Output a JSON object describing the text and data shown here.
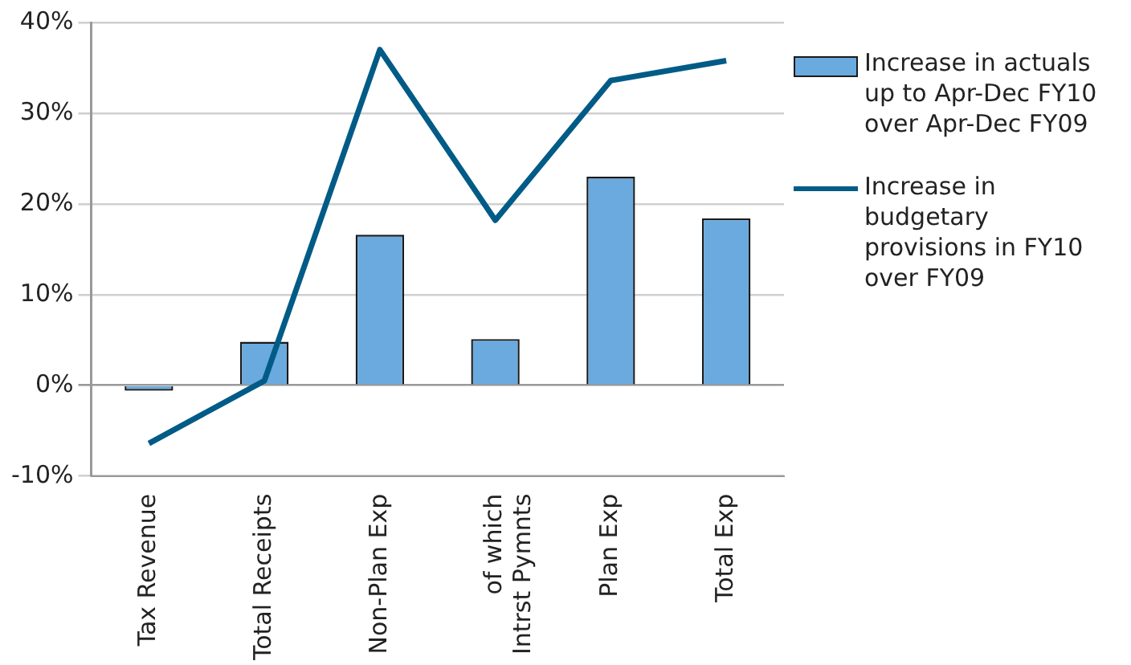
{
  "chart_data": {
    "type": "bar",
    "categories": [
      "Tax Revenue",
      "Total Receipts",
      "Non-Plan Exp",
      "of which Intrst Pymnts",
      "Plan Exp",
      "Total Exp"
    ],
    "series": [
      {
        "name": "Increase in actuals up to Apr-Dec FY10 over Apr-Dec FY09",
        "color": "#6aaade",
        "values": [
          -0.6,
          4.8,
          16.6,
          5.1,
          23.0,
          18.4
        ]
      },
      {
        "name": "Increase in budgetary provisions  in FY10 over FY09",
        "type": "line",
        "color": "#005b87",
        "values": [
          -6.4,
          0.5,
          37.0,
          18.2,
          33.6,
          35.8
        ]
      }
    ],
    "ylim": [
      -10,
      40
    ],
    "yticks": [
      {
        "value": -10,
        "label": "-10%"
      },
      {
        "value": 0,
        "label": "0%"
      },
      {
        "value": 10,
        "label": "10%"
      },
      {
        "value": 20,
        "label": "20%"
      },
      {
        "value": 30,
        "label": "30%"
      },
      {
        "value": 40,
        "label": "40%"
      }
    ],
    "grid": "y",
    "legend": "right",
    "marker": "none"
  }
}
